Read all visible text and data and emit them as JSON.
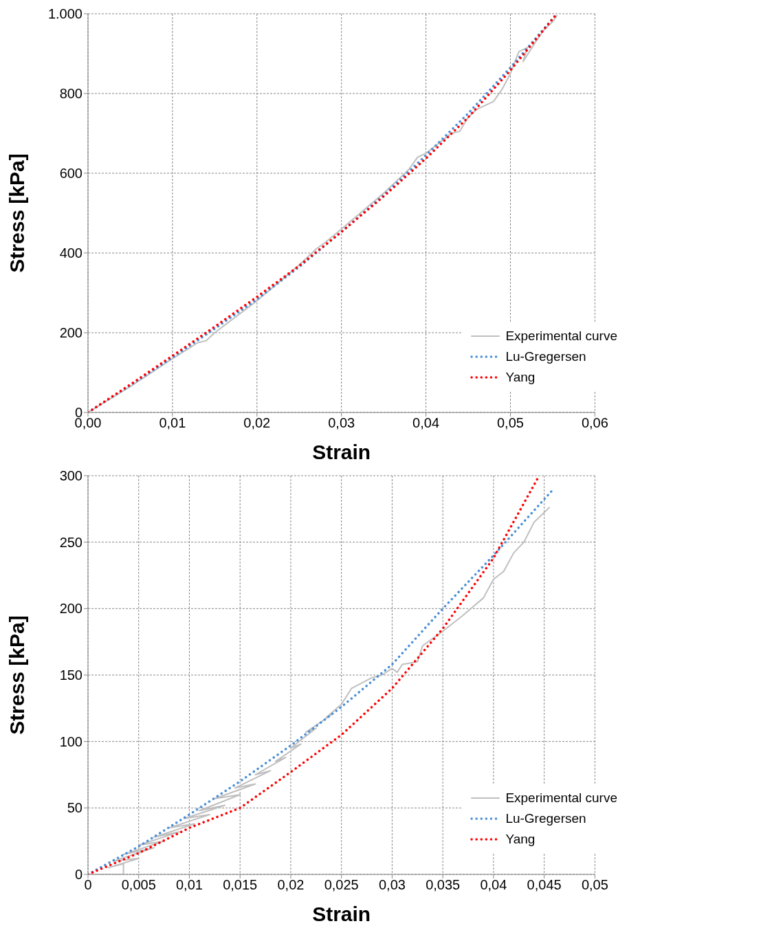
{
  "chart_data": [
    {
      "type": "line",
      "xlabel": "Strain",
      "ylabel": "Stress [kPa]",
      "xlim": [
        0,
        0.06
      ],
      "xticks": [
        {
          "value": 0,
          "label": "0,00"
        },
        {
          "value": 0.01,
          "label": "0,01"
        },
        {
          "value": 0.02,
          "label": "0,02"
        },
        {
          "value": 0.03,
          "label": "0,03"
        },
        {
          "value": 0.04,
          "label": "0,04"
        },
        {
          "value": 0.05,
          "label": "0,05"
        },
        {
          "value": 0.06,
          "label": "0,06"
        }
      ],
      "ylim": [
        0,
        1000
      ],
      "yticks": [
        0,
        200,
        400,
        600,
        800,
        {
          "value": 1000,
          "label": "1.000"
        }
      ],
      "grid": true,
      "legend": "bottom right",
      "marker": "none",
      "series": [
        {
          "name": "Experimental curve",
          "color": "#bfbfbf",
          "line_style": "solid",
          "x": [
            0,
            0.005,
            0.01,
            0.013,
            0.014,
            0.015,
            0.02,
            0.025,
            0.027,
            0.028,
            0.03,
            0.035,
            0.038,
            0.039,
            0.04,
            0.043,
            0.044,
            0.045,
            0.046,
            0.047,
            0.048,
            0.049,
            0.05,
            0.051,
            0.052,
            0.0515,
            0.053,
            0.054,
            0.055,
            0.0555
          ],
          "values": [
            0,
            65,
            135,
            175,
            180,
            200,
            280,
            370,
            410,
            425,
            460,
            550,
            610,
            640,
            650,
            700,
            705,
            740,
            760,
            770,
            780,
            810,
            850,
            905,
            915,
            880,
            930,
            960,
            980,
            995
          ]
        },
        {
          "name": "Lu-Gregersen",
          "color": "#4a8fd8",
          "line_style": "dotted",
          "x": [
            0,
            0.005,
            0.01,
            0.015,
            0.02,
            0.025,
            0.03,
            0.035,
            0.04,
            0.045,
            0.05,
            0.0555
          ],
          "values": [
            0,
            68,
            138,
            210,
            284,
            365,
            453,
            545,
            645,
            750,
            865,
            1000
          ]
        },
        {
          "name": "Yang",
          "color": "#ff0000",
          "line_style": "dotted",
          "x": [
            0,
            0.005,
            0.01,
            0.015,
            0.02,
            0.025,
            0.03,
            0.035,
            0.04,
            0.045,
            0.05,
            0.0555
          ],
          "values": [
            0,
            70,
            142,
            215,
            290,
            368,
            453,
            542,
            637,
            740,
            858,
            1000
          ]
        }
      ]
    },
    {
      "type": "line",
      "xlabel": "Strain",
      "ylabel": "Stress [kPa]",
      "xlim": [
        0,
        0.05
      ],
      "xticks": [
        0,
        {
          "value": 0.005,
          "label": "0,005"
        },
        {
          "value": 0.01,
          "label": "0,01"
        },
        {
          "value": 0.015,
          "label": "0,015"
        },
        {
          "value": 0.02,
          "label": "0,02"
        },
        {
          "value": 0.025,
          "label": "0,025"
        },
        {
          "value": 0.03,
          "label": "0,03"
        },
        {
          "value": 0.035,
          "label": "0,035"
        },
        {
          "value": 0.04,
          "label": "0,04"
        },
        {
          "value": 0.045,
          "label": "0,045"
        },
        {
          "value": 0.05,
          "label": "0,05"
        }
      ],
      "ylim": [
        0,
        300
      ],
      "yticks": [
        0,
        50,
        100,
        150,
        200,
        250,
        300
      ],
      "grid": true,
      "legend": "bottom right",
      "marker": "none",
      "series": [
        {
          "name": "Experimental curve",
          "color": "#bfbfbf",
          "line_style": "solid",
          "x": [
            0,
            0.0035,
            0.0035,
            0.002,
            0.005,
            0.0025,
            0.0065,
            0.0035,
            0.0075,
            0.005,
            0.009,
            0.0065,
            0.0105,
            0.008,
            0.012,
            0.0095,
            0.0135,
            0.011,
            0.015,
            0.0125,
            0.0165,
            0.0145,
            0.018,
            0.0165,
            0.0195,
            0.0185,
            0.021,
            0.02,
            0.0225,
            0.0215,
            0.024,
            0.0235,
            0.025,
            0.026,
            0.028,
            0.029,
            0.03,
            0.0305,
            0.031,
            0.0325,
            0.033,
            0.035,
            0.037,
            0.039,
            0.04,
            0.041,
            0.042,
            0.043,
            0.044,
            0.0455
          ],
          "values": [
            0,
            0,
            8,
            5,
            12,
            10,
            20,
            15,
            25,
            22,
            32,
            28,
            38,
            35,
            45,
            42,
            52,
            48,
            60,
            57,
            68,
            65,
            78,
            75,
            88,
            85,
            98,
            95,
            110,
            107,
            120,
            118,
            128,
            140,
            148,
            150,
            155,
            152,
            158,
            160,
            172,
            183,
            195,
            208,
            222,
            228,
            242,
            250,
            265,
            276
          ]
        },
        {
          "name": "Lu-Gregersen",
          "color": "#4a8fd8",
          "line_style": "dotted",
          "x": [
            0,
            0.005,
            0.01,
            0.015,
            0.02,
            0.025,
            0.03,
            0.035,
            0.04,
            0.0458
          ],
          "values": [
            0,
            21,
            45,
            70,
            97,
            126,
            158,
            200,
            240,
            289
          ]
        },
        {
          "name": "Yang",
          "color": "#ff0000",
          "line_style": "dotted",
          "x": [
            0,
            0.005,
            0.01,
            0.015,
            0.02,
            0.025,
            0.03,
            0.035,
            0.04,
            0.0445
          ],
          "values": [
            0,
            16,
            35,
            50,
            77,
            105,
            140,
            185,
            238,
            300
          ]
        }
      ]
    }
  ]
}
